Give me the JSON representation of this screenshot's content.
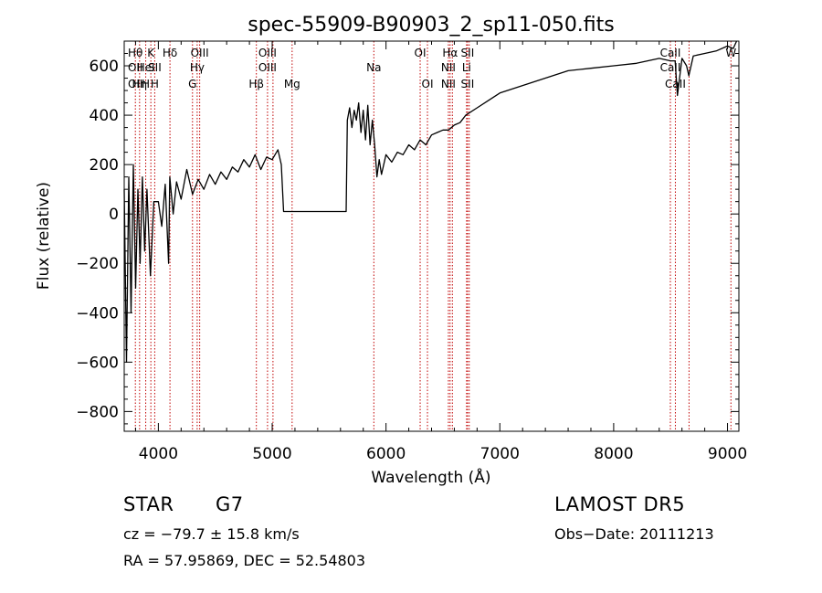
{
  "chart_data": {
    "type": "line",
    "title": "spec-55909-B90903_2_sp11-050.fits",
    "xlabel": "Wavelength (Å)",
    "ylabel": "Flux (relative)",
    "xlim": [
      3700,
      9100
    ],
    "ylim": [
      -880,
      700
    ],
    "xticks": [
      4000,
      5000,
      6000,
      7000,
      8000,
      9000
    ],
    "yticks": [
      -800,
      -600,
      -400,
      -200,
      0,
      200,
      400,
      600
    ],
    "grid": false,
    "line_color": "#000000",
    "marker_color": "#c00000",
    "series": [
      {
        "x": [
          3700,
          3720,
          3740,
          3760,
          3780,
          3800,
          3820,
          3840,
          3860,
          3880,
          3900,
          3930,
          3960,
          4000,
          4030,
          4060,
          4090,
          4100,
          4130,
          4160,
          4200,
          4250,
          4300,
          4350,
          4400,
          4450,
          4500,
          4550,
          4600,
          4650,
          4700,
          4750,
          4800,
          4850,
          4900,
          4950,
          5000,
          5050,
          5080,
          5100,
          5200,
          5300,
          5400,
          5500,
          5600,
          5650,
          5660,
          5680,
          5700,
          5720,
          5740,
          5760,
          5780,
          5800,
          5820,
          5840,
          5860,
          5880,
          5900,
          5920,
          5940,
          5960,
          6000,
          6050,
          6100,
          6150,
          6200,
          6250,
          6300,
          6350,
          6400,
          6450,
          6500,
          6550,
          6600,
          6650,
          6700,
          6800,
          6900,
          7000,
          7200,
          7400,
          7600,
          7800,
          8000,
          8200,
          8400,
          8500,
          8540,
          8560,
          8600,
          8640,
          8660,
          8700,
          8800,
          8900,
          9000,
          9050,
          9080
        ],
        "y": [
          100,
          -600,
          150,
          -400,
          200,
          -300,
          100,
          -200,
          150,
          -150,
          100,
          -250,
          50,
          50,
          -50,
          120,
          -200,
          150,
          0,
          130,
          60,
          180,
          80,
          140,
          100,
          160,
          120,
          170,
          140,
          190,
          170,
          220,
          190,
          240,
          180,
          230,
          220,
          260,
          200,
          10,
          10,
          10,
          10,
          10,
          10,
          10,
          380,
          430,
          350,
          420,
          380,
          450,
          330,
          420,
          300,
          440,
          280,
          380,
          280,
          150,
          220,
          160,
          240,
          210,
          250,
          240,
          280,
          260,
          300,
          280,
          320,
          330,
          340,
          340,
          360,
          370,
          400,
          430,
          460,
          490,
          520,
          550,
          580,
          590,
          600,
          610,
          630,
          620,
          620,
          480,
          630,
          600,
          560,
          640,
          650,
          660,
          680,
          670,
          700
        ]
      }
    ],
    "lines": [
      {
        "x": 3798,
        "labels": [
          "Hθ",
          "",
          "",
          "OII",
          "OII"
        ]
      },
      {
        "x": 3835,
        "labels": [
          "",
          "",
          "",
          "",
          "Hη"
        ]
      },
      {
        "x": 3889,
        "labels": [
          "",
          "",
          "HeI",
          "",
          "H"
        ]
      },
      {
        "x": 3934,
        "labels": [
          "K",
          "",
          "",
          "",
          ""
        ]
      },
      {
        "x": 3968,
        "labels": [
          "",
          "",
          "SII",
          "",
          "H"
        ]
      },
      {
        "x": 4102,
        "labels": [
          "Hδ",
          "",
          "",
          "",
          ""
        ]
      },
      {
        "x": 4300,
        "labels": [
          "",
          "",
          "",
          "",
          "G"
        ]
      },
      {
        "x": 4341,
        "labels": [
          "",
          "",
          "Hγ",
          "",
          ""
        ]
      },
      {
        "x": 4363,
        "labels": [
          "OIII",
          "",
          "",
          "",
          ""
        ]
      },
      {
        "x": 4861,
        "labels": [
          "",
          "",
          "",
          "",
          "Hβ"
        ]
      },
      {
        "x": 4959,
        "labels": [
          "OIII",
          "",
          "OIII",
          "",
          ""
        ]
      },
      {
        "x": 5007,
        "labels": [
          "",
          "",
          "",
          "",
          ""
        ]
      },
      {
        "x": 5175,
        "labels": [
          "",
          "",
          "",
          "",
          "Mg"
        ]
      },
      {
        "x": 5893,
        "labels": [
          "",
          "",
          "Na",
          "",
          ""
        ]
      },
      {
        "x": 6300,
        "labels": [
          "OI",
          "",
          "",
          "",
          ""
        ]
      },
      {
        "x": 6364,
        "labels": [
          "",
          "",
          "",
          "",
          "OI"
        ]
      },
      {
        "x": 6548,
        "labels": [
          "",
          "",
          "NII",
          "",
          "NII"
        ]
      },
      {
        "x": 6563,
        "labels": [
          "Hα",
          "",
          "",
          "",
          ""
        ]
      },
      {
        "x": 6583,
        "labels": [
          "",
          "",
          "",
          "",
          ""
        ]
      },
      {
        "x": 6708,
        "labels": [
          "",
          "",
          "Li",
          "",
          ""
        ]
      },
      {
        "x": 6716,
        "labels": [
          "SII",
          "",
          "",
          "",
          "SII"
        ]
      },
      {
        "x": 6731,
        "labels": [
          "",
          "",
          "",
          "",
          ""
        ]
      },
      {
        "x": 8498,
        "labels": [
          "CaII",
          "",
          "CaII",
          "",
          ""
        ]
      },
      {
        "x": 8542,
        "labels": [
          "",
          "",
          "",
          "",
          "CaII"
        ]
      },
      {
        "x": 8662,
        "labels": [
          "",
          "",
          "",
          "",
          ""
        ]
      },
      {
        "x": 9030,
        "labels": [
          "W",
          "",
          "",
          "",
          ""
        ]
      }
    ]
  },
  "info": {
    "object_class": "STAR",
    "subclass": "G7",
    "survey": "LAMOST DR5",
    "cz": "cz = −79.7 ± 15.8 km/s",
    "obs_date": "Obs−Date: 20111213",
    "coords": "RA =  57.95869, DEC =  52.54803"
  }
}
